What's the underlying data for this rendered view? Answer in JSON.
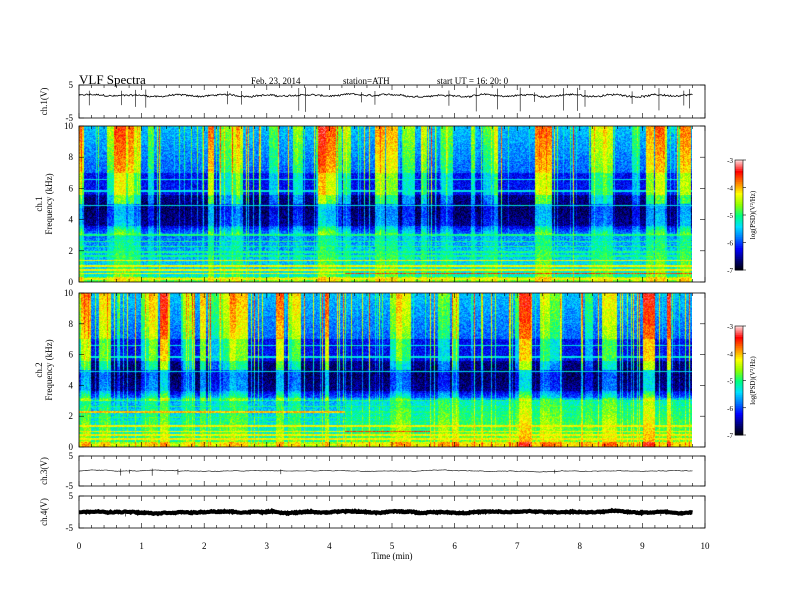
{
  "header": {
    "title": "VLF  Spectra",
    "date": "Feb. 23, 2014",
    "station": "station=ATH",
    "start_ut": "start  UT  =    16: 20: 0"
  },
  "chart_data": [
    {
      "type": "line",
      "panel": "ch1-voltage",
      "ylabel": "ch.1(V)",
      "ylim": [
        -5,
        5
      ],
      "yticks": [
        5,
        -5
      ],
      "xlim": [
        0,
        10
      ],
      "mean_level": 1.8,
      "amplitude": 0.5
    },
    {
      "type": "heatmap",
      "panel": "ch1-spectrogram",
      "ylabel": "ch.1\nFrequency  (kHz)",
      "ylim": [
        0,
        10
      ],
      "yticks": [
        0,
        2,
        4,
        6,
        8,
        10
      ],
      "xlim": [
        0,
        10
      ],
      "data_extent_min": 9.8,
      "colorbar": {
        "label": "log(PSD)(V²/Hz)",
        "ticks": [
          -3,
          -4,
          -5,
          -6,
          -7
        ],
        "range": [
          -7,
          -3
        ]
      }
    },
    {
      "type": "heatmap",
      "panel": "ch2-spectrogram",
      "ylabel": "ch.2\nFrequency  (kHz)",
      "ylim": [
        0,
        10
      ],
      "yticks": [
        0,
        2,
        4,
        6,
        8,
        10
      ],
      "xlim": [
        0,
        10
      ],
      "data_extent_min": 9.8,
      "colorbar": {
        "label": "log(PSD)(V²/Hz)",
        "ticks": [
          -3,
          -4,
          -5,
          -6,
          -7
        ],
        "range": [
          -7,
          -3
        ]
      }
    },
    {
      "type": "line",
      "panel": "ch3-voltage",
      "ylabel": "ch.3(V)",
      "ylim": [
        -5,
        5
      ],
      "yticks": [
        5,
        -5
      ],
      "xlim": [
        0,
        10
      ],
      "mean_level": 0.0,
      "amplitude": 0.05
    },
    {
      "type": "line",
      "panel": "ch4-voltage",
      "ylabel": "ch.4(V)",
      "ylim": [
        -5,
        5
      ],
      "yticks": [
        5,
        -5
      ],
      "xlim": [
        0,
        10
      ],
      "mean_level": 0.0,
      "amplitude": 0.3
    }
  ],
  "xaxis": {
    "label": "Time  (min)",
    "ticks": [
      0,
      1,
      2,
      3,
      4,
      5,
      6,
      7,
      8,
      9,
      10
    ]
  },
  "colors": {
    "background": "#ffffff",
    "axis": "#000000",
    "colormap": [
      "#000000",
      "#00007a",
      "#0000ff",
      "#0078ff",
      "#00e0ff",
      "#00ff80",
      "#90ff00",
      "#ffff00",
      "#ff8000",
      "#ff0000",
      "#ffd0d0"
    ]
  }
}
